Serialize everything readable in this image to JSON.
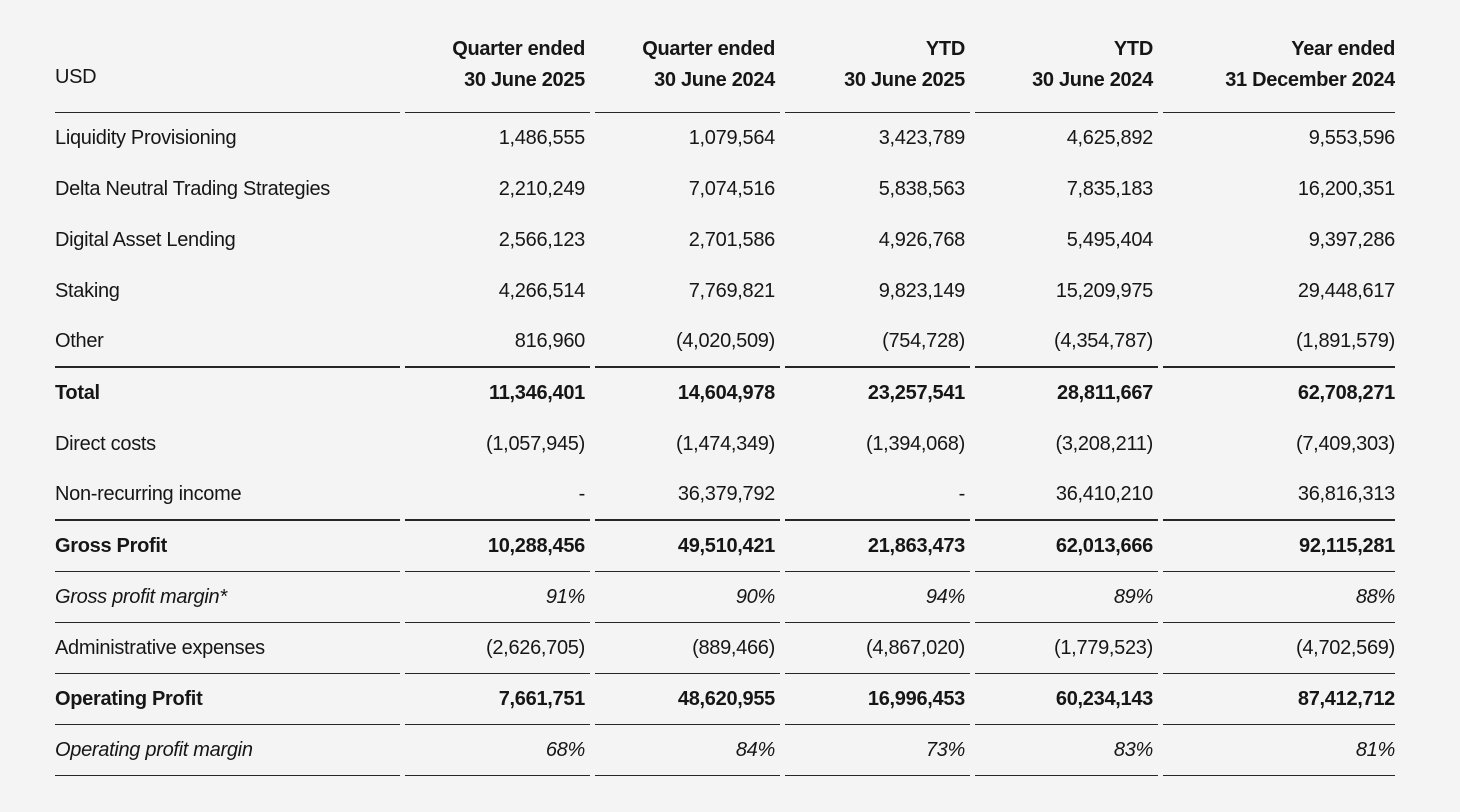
{
  "page": {
    "background": "#f4f4f4",
    "text_color": "#161616",
    "rule_color": "#262626"
  },
  "table": {
    "unit_label": "USD",
    "columns": [
      {
        "line1": "Quarter ended",
        "line2": "30 June 2025"
      },
      {
        "line1": "Quarter ended",
        "line2": "30 June 2024"
      },
      {
        "line1": "YTD",
        "line2": "30 June 2025"
      },
      {
        "line1": "YTD",
        "line2": "30 June 2024"
      },
      {
        "line1": "Year ended",
        "line2": "31 December 2024"
      }
    ],
    "rows": [
      {
        "label": "Liquidity Provisioning",
        "style": "regular",
        "rule_below": "none",
        "values": [
          "1,486,555",
          "1,079,564",
          "3,423,789",
          "4,625,892",
          "9,553,596"
        ]
      },
      {
        "label": "Delta Neutral Trading Strategies",
        "style": "regular",
        "rule_below": "none",
        "values": [
          "2,210,249",
          "7,074,516",
          "5,838,563",
          "7,835,183",
          "16,200,351"
        ]
      },
      {
        "label": "Digital Asset Lending",
        "style": "regular",
        "rule_below": "none",
        "values": [
          "2,566,123",
          "2,701,586",
          "4,926,768",
          "5,495,404",
          "9,397,286"
        ]
      },
      {
        "label": "Staking",
        "style": "regular",
        "rule_below": "none",
        "values": [
          "4,266,514",
          "7,769,821",
          "9,823,149",
          "15,209,975",
          "29,448,617"
        ]
      },
      {
        "label": "Other",
        "style": "regular",
        "rule_below": "thick",
        "values": [
          "816,960",
          "(4,020,509)",
          "(754,728)",
          "(4,354,787)",
          "(1,891,579)"
        ]
      },
      {
        "label": "Total",
        "style": "bold",
        "rule_below": "none",
        "values": [
          "11,346,401",
          "14,604,978",
          "23,257,541",
          "28,811,667",
          "62,708,271"
        ]
      },
      {
        "label": "Direct costs",
        "style": "regular",
        "rule_below": "none",
        "values": [
          "(1,057,945)",
          "(1,474,349)",
          "(1,394,068)",
          "(3,208,211)",
          "(7,409,303)"
        ]
      },
      {
        "label": "Non-recurring income",
        "style": "regular",
        "rule_below": "thick",
        "values": [
          "-",
          "36,379,792",
          "-",
          "36,410,210",
          "36,816,313"
        ]
      },
      {
        "label": "Gross Profit",
        "style": "bold",
        "rule_below": "thin",
        "values": [
          "10,288,456",
          "49,510,421",
          "21,863,473",
          "62,013,666",
          "92,115,281"
        ]
      },
      {
        "label": "Gross profit margin*",
        "style": "italic",
        "rule_below": "thin",
        "values": [
          "91%",
          "90%",
          "94%",
          "89%",
          "88%"
        ]
      },
      {
        "label": "Administrative expenses",
        "style": "regular",
        "rule_below": "thin",
        "values": [
          "(2,626,705)",
          "(889,466)",
          "(4,867,020)",
          "(1,779,523)",
          "(4,702,569)"
        ]
      },
      {
        "label": "Operating Profit",
        "style": "bold",
        "rule_below": "thin",
        "values": [
          "7,661,751",
          "48,620,955",
          "16,996,453",
          "60,234,143",
          "87,412,712"
        ]
      },
      {
        "label": "Operating profit margin",
        "style": "italic",
        "rule_below": "thin",
        "values": [
          "68%",
          "84%",
          "73%",
          "83%",
          "81%"
        ]
      }
    ]
  }
}
